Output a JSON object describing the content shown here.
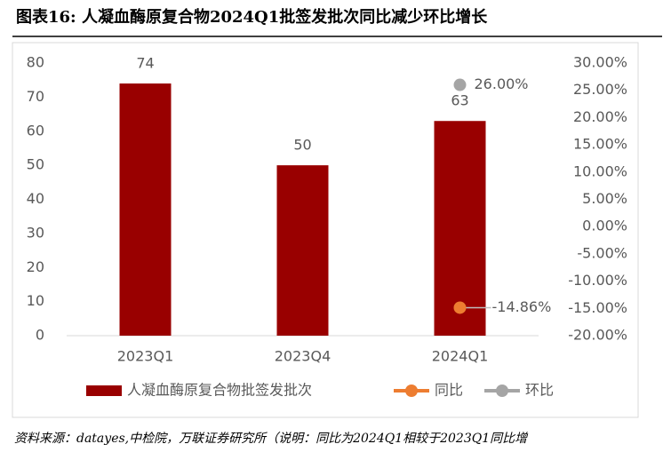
{
  "chart_data": {
    "type": "bar",
    "title": "图表16: 人凝血酶原复合物2024Q1批签发批次同比减少环比增长",
    "categories": [
      "2023Q1",
      "2023Q4",
      "2024Q1"
    ],
    "values": [
      74,
      50,
      63
    ],
    "color": "#990000",
    "name": "人凝血酶原复合物批签发批次",
    "ylim": [
      0,
      80
    ],
    "yticks": [
      0,
      10,
      20,
      30,
      40,
      50,
      60,
      70,
      80
    ],
    "y2lim": [
      -20,
      30
    ],
    "y2ticks": [
      {
        "value": -20,
        "label": "-20.00%"
      },
      {
        "value": -15,
        "label": "-15.00%"
      },
      {
        "value": -10,
        "label": "-10.00%"
      },
      {
        "value": -5,
        "label": "-5.00%"
      },
      {
        "value": 0,
        "label": "0.00%"
      },
      {
        "value": 5,
        "label": "5.00%"
      },
      {
        "value": 10,
        "label": "10.00%"
      },
      {
        "value": 15,
        "label": "15.00%"
      },
      {
        "value": 20,
        "label": "20.00%"
      },
      {
        "value": 25,
        "label": "25.00%"
      },
      {
        "value": 30,
        "label": "30.00%"
      }
    ],
    "series": [
      {
        "name": "同比",
        "color": "#ed7d31",
        "axis": "y2",
        "values": [
          null,
          null,
          -14.86
        ],
        "value_labels": [
          null,
          null,
          "-14.86%"
        ]
      },
      {
        "name": "环比",
        "color": "#a5a5a5",
        "axis": "y2",
        "values": [
          null,
          null,
          26.0
        ],
        "value_labels": [
          null,
          null,
          "26.00%"
        ]
      }
    ],
    "source": "资料来源：datayes,中检院，万联证券研究所（说明：同比为2024Q1相较于2023Q1同比增"
  }
}
